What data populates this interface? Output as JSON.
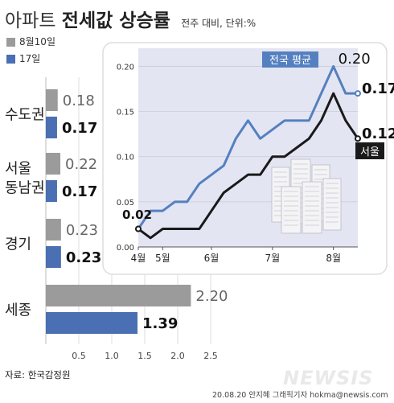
{
  "title": {
    "light": "아파트",
    "bold": "전세값 상승률",
    "sub": "전주 대비, 단위:%"
  },
  "legend": [
    {
      "label": "8월10일",
      "color": "#9b9b9b"
    },
    {
      "label": "17일",
      "color": "#4a6fb2"
    }
  ],
  "source": "자료: 한국감정원",
  "credit": "20.08.20 안지혜 그래픽기자  hokma@newsis.com",
  "watermark": "NEWSIS",
  "chart_data": [
    {
      "type": "bar",
      "orientation": "horizontal",
      "categories": [
        "수도권",
        "서울 동남권",
        "경기",
        "세종"
      ],
      "series": [
        {
          "name": "8월10일",
          "values": [
            0.18,
            0.22,
            0.23,
            2.2
          ],
          "color": "#9b9b9b"
        },
        {
          "name": "17일",
          "values": [
            0.17,
            0.17,
            0.23,
            1.39
          ],
          "color": "#4a6fb2"
        }
      ],
      "value_labels": [
        [
          "0.18",
          "0.17"
        ],
        [
          "0.22",
          "0.17"
        ],
        [
          "0.23",
          "0.23"
        ],
        [
          "2.20",
          "1.39"
        ]
      ],
      "xlim": [
        0,
        2.8
      ],
      "xticks": [
        0.5,
        1.0,
        1.5,
        2.0,
        2.5
      ],
      "xtick_labels": [
        "0.5",
        "1.0",
        "1.5",
        "2.0",
        "2.5"
      ]
    },
    {
      "type": "line",
      "xticks": [
        0,
        2,
        6,
        11,
        16
      ],
      "xtick_labels": [
        "4월",
        "5월",
        "6월",
        "7월",
        "8월"
      ],
      "ylim": [
        0,
        0.22
      ],
      "yticks": [
        0,
        0.05,
        0.1,
        0.15,
        0.2
      ],
      "ytick_labels": [
        "0.00",
        "0.05",
        "0.10",
        "0.15",
        "0.20"
      ],
      "grid": true,
      "series": [
        {
          "name": "전국 평균",
          "color": "#5580c0",
          "values": [
            0.02,
            0.04,
            0.04,
            0.05,
            0.05,
            0.07,
            0.08,
            0.09,
            0.12,
            0.14,
            0.12,
            0.13,
            0.14,
            0.14,
            0.14,
            0.17,
            0.2,
            0.17,
            0.17
          ]
        },
        {
          "name": "서울",
          "color": "#1a1a1a",
          "values": [
            0.02,
            0.01,
            0.02,
            0.02,
            0.02,
            0.02,
            0.04,
            0.06,
            0.07,
            0.08,
            0.08,
            0.1,
            0.1,
            0.11,
            0.12,
            0.14,
            0.17,
            0.14,
            0.12
          ]
        }
      ],
      "annotations": [
        {
          "text": "0.02",
          "index": 0,
          "series": 0
        },
        {
          "text": "0.20",
          "index": 16,
          "series": 0
        },
        {
          "text": "0.17",
          "index": 18,
          "series": 0
        },
        {
          "text": "0.12",
          "index": 18,
          "series": 1
        }
      ]
    }
  ]
}
